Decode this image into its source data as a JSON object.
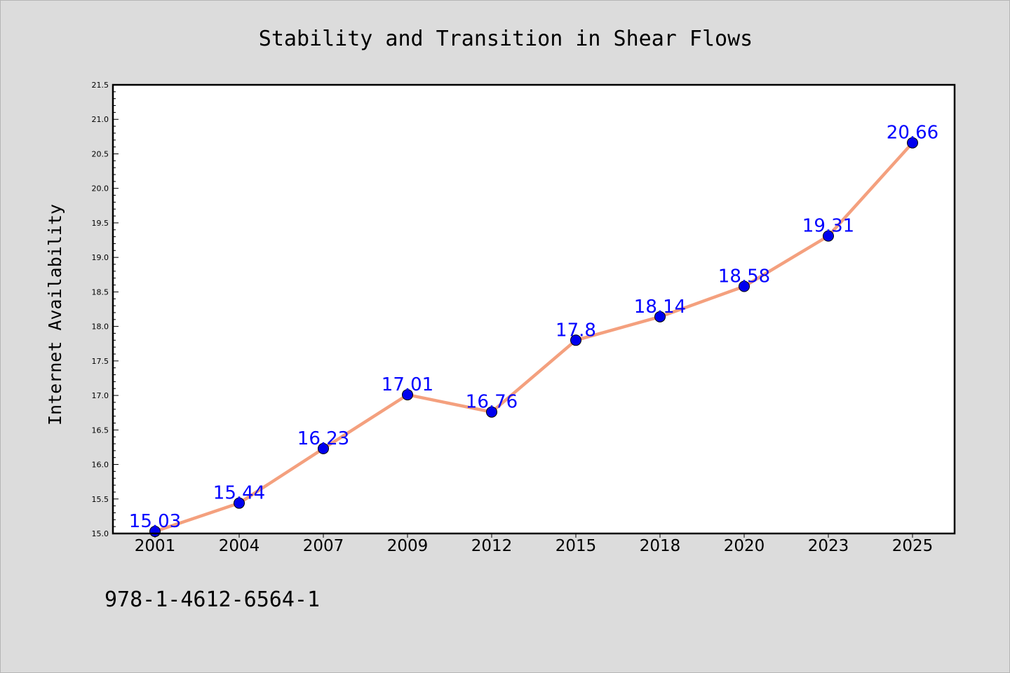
{
  "chart_data": {
    "type": "line",
    "title": "Stability and Transition in Shear Flows",
    "xlabel": "",
    "ylabel": "Internet Availability",
    "categories": [
      "2001",
      "2004",
      "2007",
      "2009",
      "2012",
      "2015",
      "2018",
      "2020",
      "2023",
      "2025"
    ],
    "values": [
      15.03,
      15.44,
      16.23,
      17.01,
      16.76,
      17.8,
      18.14,
      18.58,
      19.31,
      20.66
    ],
    "data_labels": [
      "15.03",
      "15.44",
      "16.23",
      "17.01",
      "16.76",
      "17.8",
      "18.14",
      "18.58",
      "19.31",
      "20.66"
    ],
    "ylim": [
      15.0,
      21.5
    ],
    "yticks": [
      "15.0",
      "15.5",
      "16.0",
      "16.5",
      "17.0",
      "17.5",
      "18.0",
      "18.5",
      "19.0",
      "19.5",
      "20.0",
      "20.5",
      "21.0",
      "21.5"
    ],
    "grid": false,
    "line_color": "#f4a07e",
    "marker_color": "#0000ee",
    "label_color": "#0000ff"
  },
  "footer": {
    "isbn": "978-1-4612-6564-1"
  }
}
